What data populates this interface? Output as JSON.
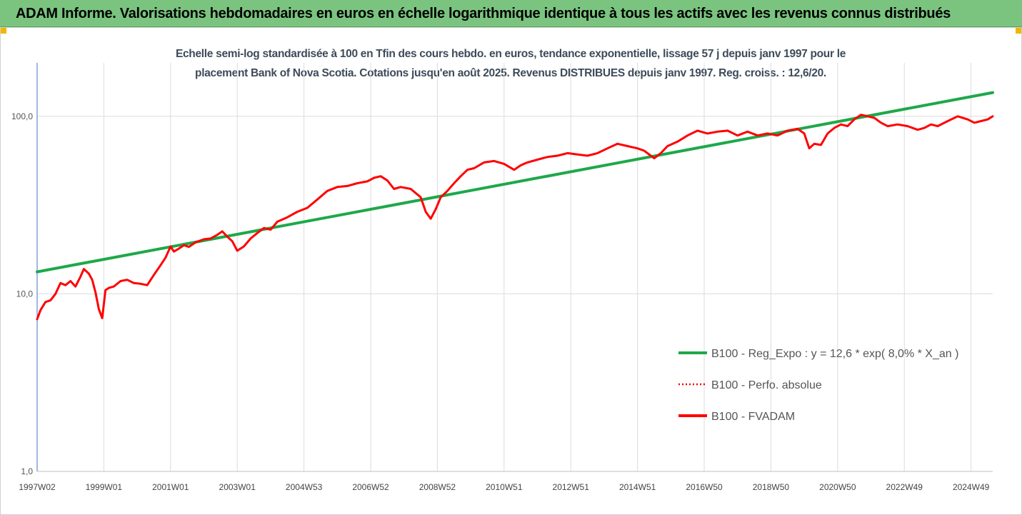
{
  "header": {
    "title": "ADAM Informe. Valorisations hebdomadaires en euros en échelle logarithmique identique à tous les actifs avec les revenus connus distribués"
  },
  "chart_data": {
    "type": "line",
    "title": "Echelle semi-log standardisée à 100 en Tfin des cours hebdo. en euros, tendance exponentielle, lissage 57 j depuis janv 1997 pour le placement Bank of Nova Scotia. Cotations jusqu'en août 2025. Revenus DISTRIBUES depuis janv 1997.  Reg. croiss. : 12,6/20.",
    "title_lines": [
      "Echelle semi-log standardisée à 100 en Tfin des cours hebdo. en euros, tendance exponentielle, lissage 57 j depuis janv 1997 pour le",
      "placement Bank of Nova Scotia. Cotations jusqu'en août 2025. Revenus DISTRIBUES depuis janv 1997.  Reg. croiss. : 12,6/20."
    ],
    "y_scale": "log",
    "ylim": [
      1,
      200
    ],
    "y_ticks": [
      {
        "value": 1,
        "label": "1,0"
      },
      {
        "value": 10,
        "label": "10,0"
      },
      {
        "value": 100,
        "label": "100,0"
      }
    ],
    "xlim": [
      1997.0,
      2025.65
    ],
    "x_ticks": [
      {
        "value": 1997.0,
        "label": "1997W02"
      },
      {
        "value": 1999.0,
        "label": "1999W01"
      },
      {
        "value": 2001.0,
        "label": "2001W01"
      },
      {
        "value": 2003.0,
        "label": "2003W01"
      },
      {
        "value": 2005.0,
        "label": "2004W53"
      },
      {
        "value": 2007.0,
        "label": "2006W52"
      },
      {
        "value": 2009.0,
        "label": "2008W52"
      },
      {
        "value": 2011.0,
        "label": "2010W51"
      },
      {
        "value": 2013.0,
        "label": "2012W51"
      },
      {
        "value": 2015.0,
        "label": "2014W51"
      },
      {
        "value": 2017.0,
        "label": "2016W50"
      },
      {
        "value": 2019.0,
        "label": "2018W50"
      },
      {
        "value": 2021.0,
        "label": "2020W50"
      },
      {
        "value": 2023.0,
        "label": "2022W49"
      },
      {
        "value": 2025.0,
        "label": "2024W49"
      }
    ],
    "grid": true,
    "legend_position": "bottom-right",
    "series": [
      {
        "name": "B100 - Reg_Expo : y = 12,6 * exp( 8,0% *  X_an )",
        "color": "#1ea84a",
        "style": "solid",
        "x": [
          1997.0,
          2025.65
        ],
        "y": [
          13.3,
          136
        ]
      },
      {
        "name": "B100 - Perfo. absolue",
        "color": "#ff0000",
        "style": "dotted",
        "x": [],
        "y": []
      },
      {
        "name": "B100 - FVADAM",
        "color": "#ff0000",
        "style": "solid",
        "x": [
          1997.0,
          1997.1,
          1997.25,
          1997.4,
          1997.55,
          1997.7,
          1997.85,
          1998.0,
          1998.15,
          1998.3,
          1998.4,
          1998.55,
          1998.65,
          1998.75,
          1998.85,
          1998.95,
          1999.05,
          1999.15,
          1999.3,
          1999.5,
          1999.7,
          1999.9,
          2000.1,
          2000.3,
          2000.5,
          2000.7,
          2000.85,
          2001.0,
          2001.1,
          2001.25,
          2001.4,
          2001.55,
          2001.75,
          2002.0,
          2002.2,
          2002.4,
          2002.55,
          2002.7,
          2002.85,
          2003.0,
          2003.2,
          2003.4,
          2003.6,
          2003.8,
          2004.0,
          2004.2,
          2004.5,
          2004.8,
          2005.1,
          2005.4,
          2005.7,
          2006.0,
          2006.3,
          2006.6,
          2006.9,
          2007.1,
          2007.3,
          2007.5,
          2007.7,
          2007.9,
          2008.2,
          2008.5,
          2008.65,
          2008.8,
          2008.95,
          2009.1,
          2009.3,
          2009.5,
          2009.7,
          2009.9,
          2010.1,
          2010.4,
          2010.7,
          2011.0,
          2011.3,
          2011.5,
          2011.7,
          2012.0,
          2012.3,
          2012.6,
          2012.9,
          2013.2,
          2013.5,
          2013.8,
          2014.1,
          2014.4,
          2014.7,
          2015.0,
          2015.2,
          2015.5,
          2015.7,
          2015.9,
          2016.2,
          2016.5,
          2016.8,
          2017.1,
          2017.4,
          2017.7,
          2018.0,
          2018.3,
          2018.6,
          2018.9,
          2019.2,
          2019.5,
          2019.8,
          2020.0,
          2020.15,
          2020.3,
          2020.5,
          2020.7,
          2020.9,
          2021.1,
          2021.3,
          2021.5,
          2021.7,
          2021.9,
          2022.1,
          2022.3,
          2022.5,
          2022.8,
          2023.1,
          2023.4,
          2023.6,
          2023.8,
          2024.0,
          2024.3,
          2024.6,
          2024.9,
          2025.1,
          2025.3,
          2025.5,
          2025.65
        ],
        "y": [
          7.2,
          8.1,
          9.0,
          9.2,
          10.0,
          11.5,
          11.2,
          11.8,
          11.0,
          12.5,
          13.8,
          13.0,
          12.0,
          10.2,
          8.2,
          7.3,
          10.5,
          10.8,
          11.0,
          11.8,
          12.0,
          11.5,
          11.4,
          11.2,
          12.8,
          14.5,
          16.0,
          18.5,
          17.3,
          18.0,
          18.8,
          18.4,
          19.5,
          20.3,
          20.5,
          21.5,
          22.5,
          21.0,
          19.8,
          17.5,
          18.5,
          20.5,
          22.0,
          23.5,
          23.0,
          25.5,
          27.0,
          29.0,
          30.5,
          34.0,
          38.0,
          40.0,
          40.5,
          42.0,
          43.0,
          45.0,
          46.0,
          43.5,
          39.0,
          40.0,
          39.0,
          35.0,
          29.0,
          26.5,
          30.0,
          35.0,
          38.0,
          42.0,
          46.0,
          50.0,
          51.0,
          55.0,
          56.0,
          54.0,
          50.0,
          53.0,
          55.0,
          57.0,
          59.0,
          60.0,
          62.0,
          61.0,
          60.0,
          62.0,
          66.0,
          70.0,
          68.0,
          66.0,
          64.0,
          58.0,
          62.0,
          68.0,
          72.0,
          78.0,
          83.0,
          80.0,
          82.0,
          83.0,
          78.0,
          82.0,
          78.0,
          80.0,
          78.0,
          83.0,
          85.0,
          80.0,
          66.0,
          70.0,
          69.0,
          80.0,
          86.0,
          90.0,
          88.0,
          96.0,
          102.0,
          100.0,
          98.0,
          92.0,
          88.0,
          90.0,
          88.0,
          84.0,
          86.0,
          90.0,
          88.0,
          94.0,
          100.0,
          96.0,
          92.0,
          94.0,
          96.0,
          100.0
        ]
      }
    ]
  }
}
